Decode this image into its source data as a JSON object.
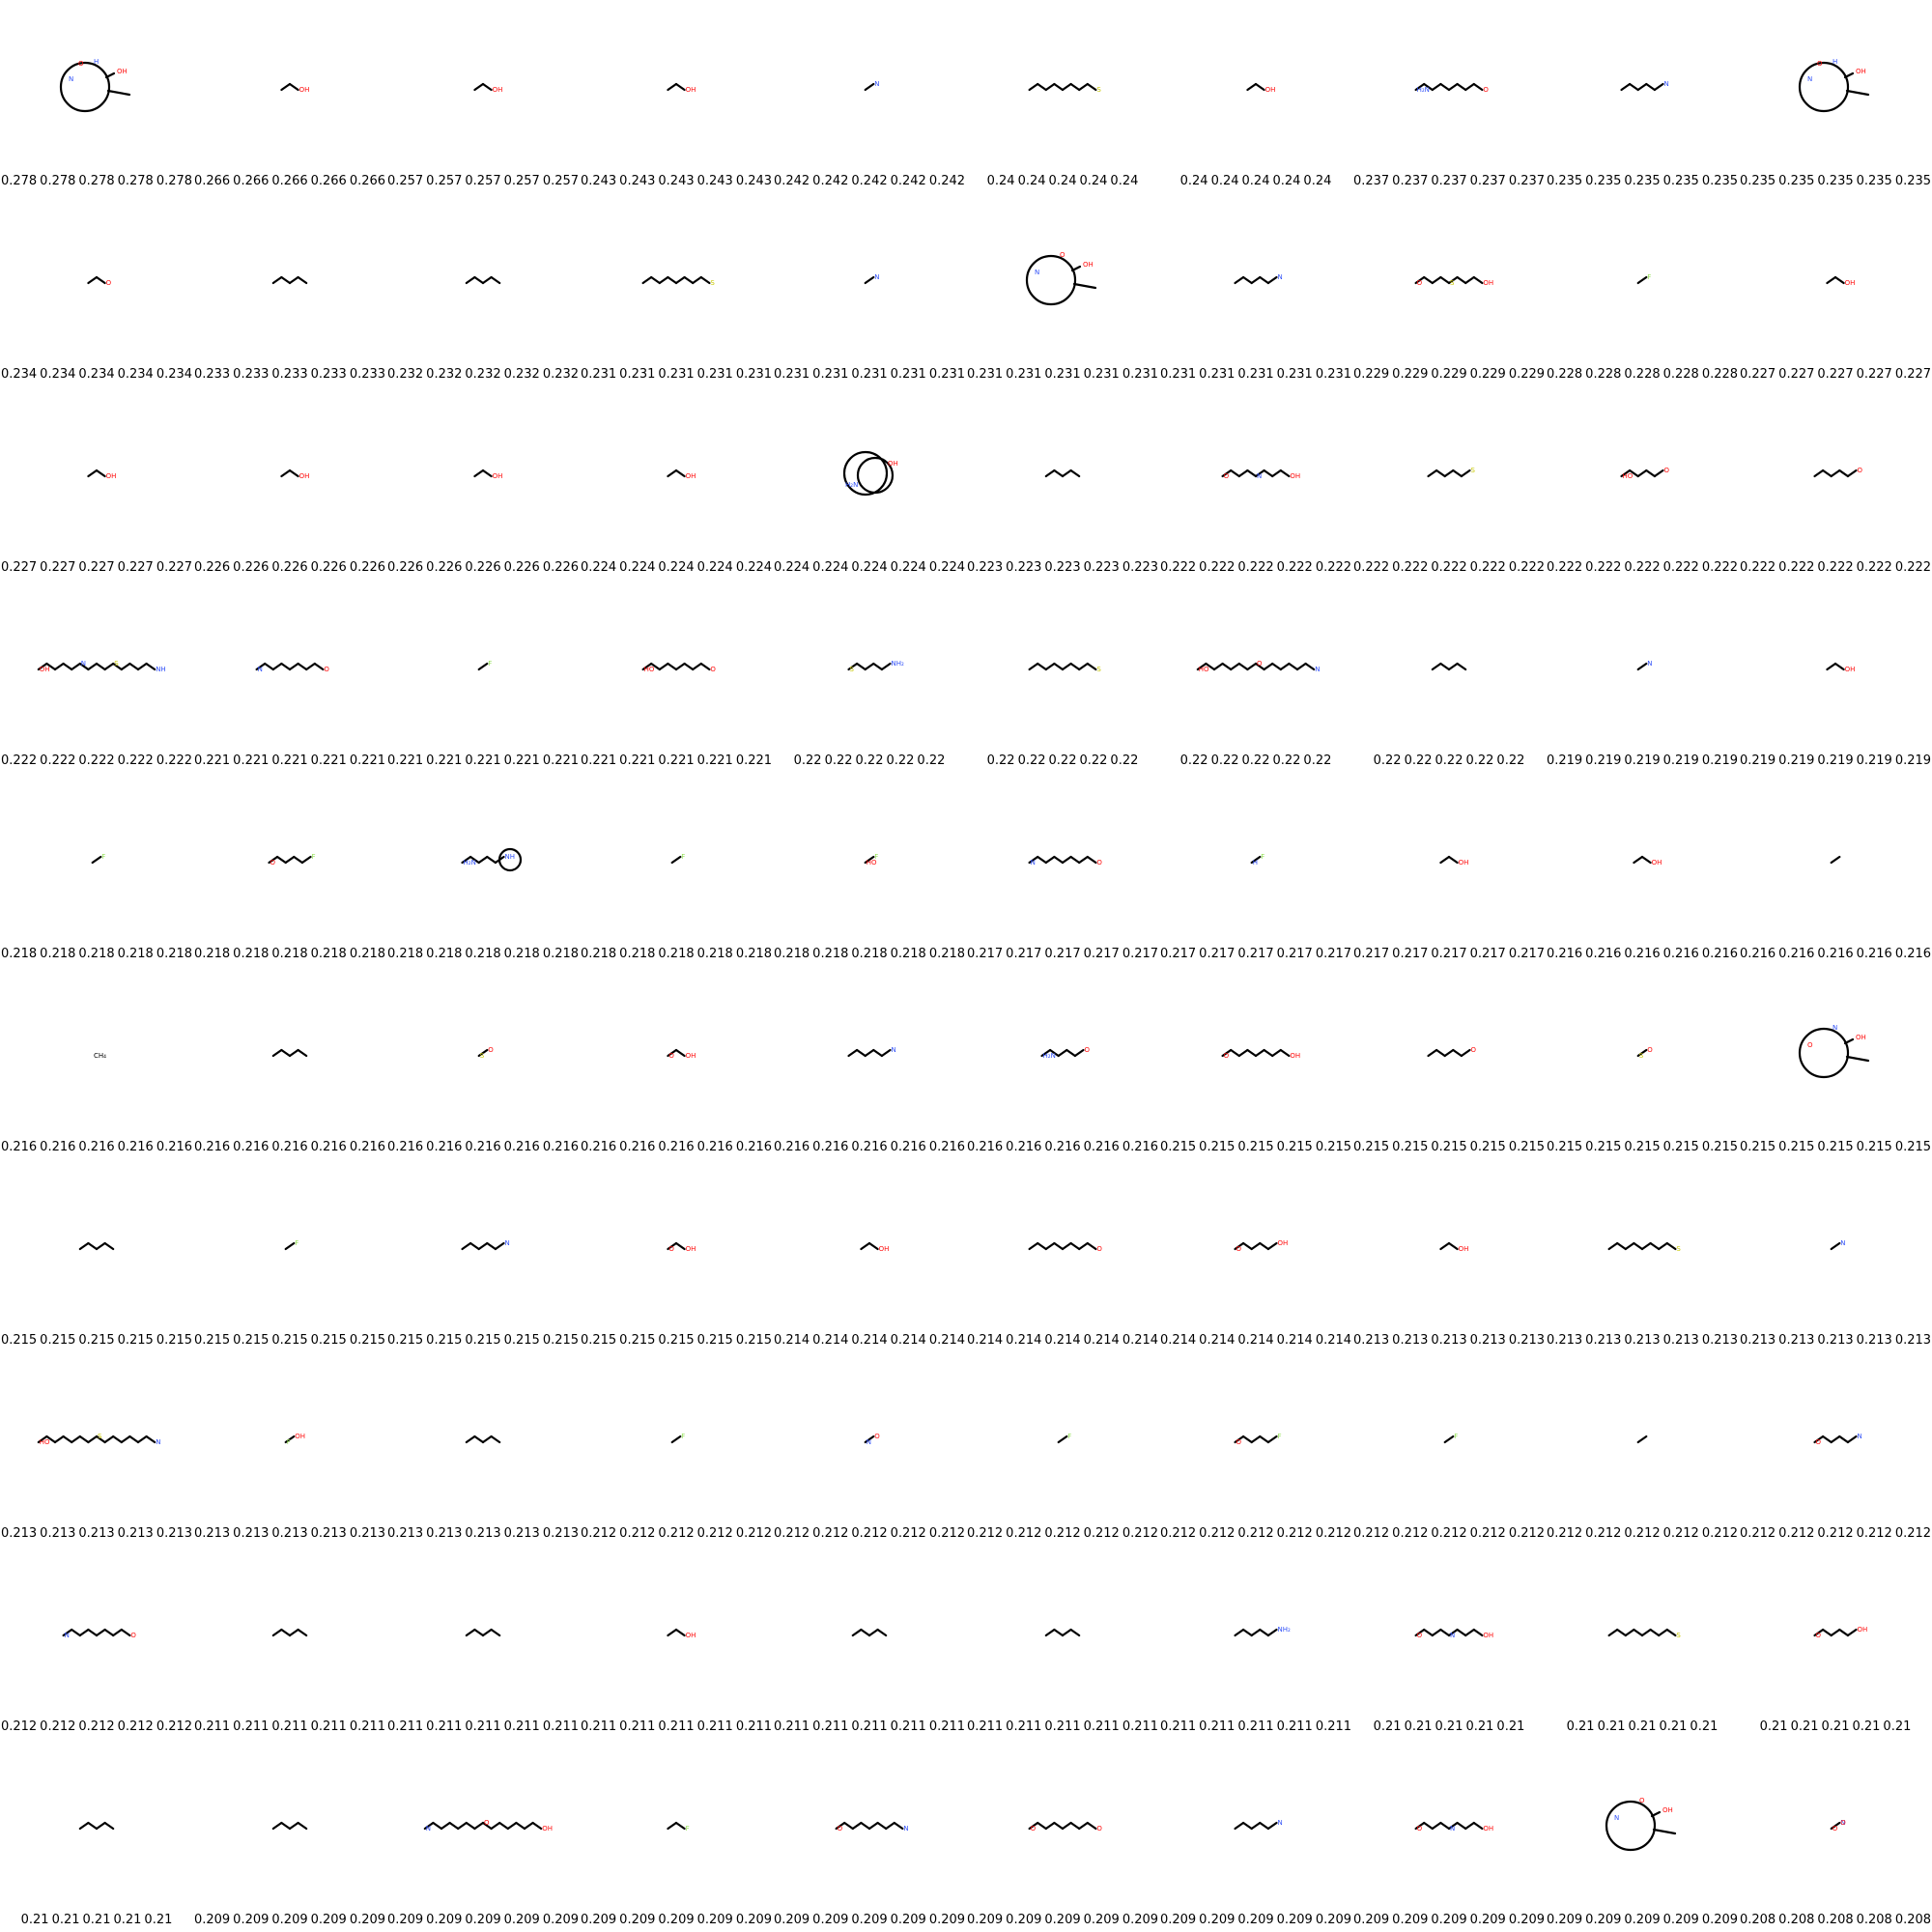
{
  "colors": {
    "bond": "#000000",
    "oxygen": "#ff0d0d",
    "nitrogen": "#3050f8",
    "sulfur": "#c8c800",
    "fluorine": "#90e050"
  },
  "cells": [
    {
      "score": "0.278",
      "shape": "macrocycle",
      "atoms": [
        {
          "t": "N",
          "c": "nitrogen"
        },
        {
          "t": "O",
          "c": "oxygen"
        },
        {
          "t": "H",
          "c": "nitrogen"
        },
        {
          "t": "OH",
          "c": "oxygen"
        }
      ]
    },
    {
      "score": "0.266",
      "shape": "short",
      "atoms": [
        {
          "t": "OH",
          "c": "oxygen"
        }
      ]
    },
    {
      "score": "0.257",
      "shape": "short",
      "atoms": [
        {
          "t": "OH",
          "c": "oxygen"
        }
      ]
    },
    {
      "score": "0.243",
      "shape": "short",
      "atoms": [
        {
          "t": "OH",
          "c": "oxygen"
        }
      ]
    },
    {
      "score": "0.242",
      "shape": "tiny",
      "atoms": [
        {
          "t": "N",
          "c": "nitrogen"
        }
      ]
    },
    {
      "score": "0.24",
      "shape": "long",
      "atoms": [
        {
          "t": "S",
          "c": "sulfur"
        }
      ]
    },
    {
      "score": "0.24",
      "shape": "short",
      "atoms": [
        {
          "t": "OH",
          "c": "oxygen"
        }
      ]
    },
    {
      "score": "0.237",
      "shape": "long",
      "atoms": [
        {
          "t": "H₂N",
          "c": "nitrogen"
        },
        {
          "t": "O",
          "c": "oxygen"
        }
      ]
    },
    {
      "score": "0.235",
      "shape": "medium",
      "atoms": [
        {
          "t": "N",
          "c": "nitrogen"
        }
      ]
    },
    {
      "score": "0.235",
      "shape": "macrocycle",
      "atoms": [
        {
          "t": "N",
          "c": "nitrogen"
        },
        {
          "t": "O",
          "c": "oxygen"
        },
        {
          "t": "H",
          "c": "nitrogen"
        },
        {
          "t": "OH",
          "c": "oxygen"
        }
      ]
    },
    {
      "score": "0.234",
      "shape": "short",
      "atoms": [
        {
          "t": "O",
          "c": "oxygen"
        }
      ]
    },
    {
      "score": "0.233",
      "shape": "zigzag",
      "atoms": []
    },
    {
      "score": "0.232",
      "shape": "zigzag",
      "atoms": []
    },
    {
      "score": "0.231",
      "shape": "long",
      "atoms": [
        {
          "t": "S",
          "c": "sulfur"
        }
      ]
    },
    {
      "score": "0.231",
      "shape": "tiny",
      "atoms": [
        {
          "t": "N",
          "c": "nitrogen"
        }
      ]
    },
    {
      "score": "0.231",
      "shape": "macrocycle",
      "atoms": [
        {
          "t": "N",
          "c": "nitrogen"
        },
        {
          "t": "O",
          "c": "oxygen"
        },
        {
          "t": "OH",
          "c": "oxygen"
        }
      ]
    },
    {
      "score": "0.231",
      "shape": "medium",
      "atoms": [
        {
          "t": "N",
          "c": "nitrogen"
        }
      ]
    },
    {
      "score": "0.229",
      "shape": "long",
      "atoms": [
        {
          "t": "O",
          "c": "oxygen"
        },
        {
          "t": "S",
          "c": "sulfur"
        },
        {
          "t": "OH",
          "c": "oxygen"
        }
      ]
    },
    {
      "score": "0.228",
      "shape": "tiny",
      "atoms": [
        {
          "t": "F",
          "c": "fluorine"
        }
      ]
    },
    {
      "score": "0.227",
      "shape": "short",
      "atoms": [
        {
          "t": "OH",
          "c": "oxygen"
        }
      ]
    },
    {
      "score": "0.227",
      "shape": "short",
      "atoms": [
        {
          "t": "OH",
          "c": "oxygen"
        }
      ]
    },
    {
      "score": "0.226",
      "shape": "short",
      "atoms": [
        {
          "t": "OH",
          "c": "oxygen"
        }
      ]
    },
    {
      "score": "0.226",
      "shape": "short",
      "atoms": [
        {
          "t": "OH",
          "c": "oxygen"
        }
      ]
    },
    {
      "score": "0.224",
      "shape": "short",
      "atoms": [
        {
          "t": "OH",
          "c": "oxygen"
        }
      ]
    },
    {
      "score": "0.224",
      "shape": "bicycle",
      "atoms": [
        {
          "t": "H₂N",
          "c": "nitrogen"
        },
        {
          "t": "OH",
          "c": "oxygen"
        }
      ]
    },
    {
      "score": "0.223",
      "shape": "zigzag",
      "atoms": []
    },
    {
      "score": "0.222",
      "shape": "long",
      "atoms": [
        {
          "t": "O",
          "c": "oxygen"
        },
        {
          "t": "N",
          "c": "nitrogen"
        },
        {
          "t": "OH",
          "c": "oxygen"
        }
      ]
    },
    {
      "score": "0.222",
      "shape": "medium",
      "atoms": [
        {
          "t": "S",
          "c": "sulfur"
        }
      ]
    },
    {
      "score": "0.222",
      "shape": "medium",
      "atoms": [
        {
          "t": "HO",
          "c": "oxygen"
        },
        {
          "t": "O",
          "c": "oxygen"
        }
      ]
    },
    {
      "score": "0.222",
      "shape": "medium",
      "atoms": [
        {
          "t": "O",
          "c": "oxygen"
        }
      ]
    },
    {
      "score": "0.222",
      "shape": "verylong",
      "atoms": [
        {
          "t": "OH",
          "c": "oxygen"
        },
        {
          "t": "N",
          "c": "nitrogen"
        },
        {
          "t": "S",
          "c": "sulfur"
        },
        {
          "t": "NH",
          "c": "nitrogen"
        }
      ]
    },
    {
      "score": "0.221",
      "shape": "long",
      "atoms": [
        {
          "t": "N",
          "c": "nitrogen"
        },
        {
          "t": "O",
          "c": "oxygen"
        }
      ]
    },
    {
      "score": "0.221",
      "shape": "tiny",
      "atoms": [
        {
          "t": "F",
          "c": "fluorine"
        }
      ]
    },
    {
      "score": "0.221",
      "shape": "long",
      "atoms": [
        {
          "t": "HO",
          "c": "oxygen"
        },
        {
          "t": "O",
          "c": "oxygen"
        }
      ]
    },
    {
      "score": "0.22",
      "shape": "medium",
      "atoms": [
        {
          "t": "S",
          "c": "sulfur"
        },
        {
          "t": "NH₂",
          "c": "nitrogen"
        }
      ]
    },
    {
      "score": "0.22",
      "shape": "long",
      "atoms": [
        {
          "t": "S",
          "c": "sulfur"
        }
      ]
    },
    {
      "score": "0.22",
      "shape": "verylong",
      "atoms": [
        {
          "t": "HO",
          "c": "oxygen"
        },
        {
          "t": "O",
          "c": "oxygen"
        },
        {
          "t": "N",
          "c": "nitrogen"
        }
      ]
    },
    {
      "score": "0.22",
      "shape": "zigzag",
      "atoms": []
    },
    {
      "score": "0.219",
      "shape": "tiny",
      "atoms": [
        {
          "t": "N",
          "c": "nitrogen"
        }
      ]
    },
    {
      "score": "0.219",
      "shape": "short",
      "atoms": [
        {
          "t": "OH",
          "c": "oxygen"
        }
      ]
    },
    {
      "score": "0.218",
      "shape": "tiny",
      "atoms": [
        {
          "t": "F",
          "c": "fluorine"
        }
      ]
    },
    {
      "score": "0.218",
      "shape": "medium",
      "atoms": [
        {
          "t": "O",
          "c": "oxygen"
        },
        {
          "t": "F",
          "c": "fluorine"
        }
      ]
    },
    {
      "score": "0.218",
      "shape": "ring",
      "atoms": [
        {
          "t": "H₂N",
          "c": "nitrogen"
        },
        {
          "t": "NH",
          "c": "nitrogen"
        }
      ]
    },
    {
      "score": "0.218",
      "shape": "tiny",
      "atoms": [
        {
          "t": "F",
          "c": "fluorine"
        }
      ]
    },
    {
      "score": "0.218",
      "shape": "tiny",
      "atoms": [
        {
          "t": "HO",
          "c": "oxygen"
        },
        {
          "t": "F",
          "c": "fluorine"
        }
      ]
    },
    {
      "score": "0.217",
      "shape": "long",
      "atoms": [
        {
          "t": "N",
          "c": "nitrogen"
        },
        {
          "t": "O",
          "c": "oxygen"
        }
      ]
    },
    {
      "score": "0.217",
      "shape": "tiny",
      "atoms": [
        {
          "t": "H",
          "c": "nitrogen"
        },
        {
          "t": "F",
          "c": "fluorine"
        }
      ]
    },
    {
      "score": "0.217",
      "shape": "short",
      "atoms": [
        {
          "t": "OH",
          "c": "oxygen"
        }
      ]
    },
    {
      "score": "0.216",
      "shape": "short",
      "atoms": [
        {
          "t": "OH",
          "c": "oxygen"
        }
      ]
    },
    {
      "score": "0.216",
      "shape": "tiny",
      "atoms": []
    },
    {
      "score": "0.216",
      "shape": "none",
      "atoms": [
        {
          "t": "CH₄",
          "c": "bond"
        }
      ]
    },
    {
      "score": "0.216",
      "shape": "zigzag",
      "atoms": []
    },
    {
      "score": "0.216",
      "shape": "tiny",
      "atoms": [
        {
          "t": "S",
          "c": "sulfur"
        },
        {
          "t": "O",
          "c": "oxygen"
        }
      ]
    },
    {
      "score": "0.216",
      "shape": "short",
      "atoms": [
        {
          "t": "O",
          "c": "oxygen"
        },
        {
          "t": "OH",
          "c": "oxygen"
        }
      ]
    },
    {
      "score": "0.216",
      "shape": "medium",
      "atoms": [
        {
          "t": "N",
          "c": "nitrogen"
        }
      ]
    },
    {
      "score": "0.216",
      "shape": "medium",
      "atoms": [
        {
          "t": "H₂N",
          "c": "nitrogen"
        },
        {
          "t": "O",
          "c": "oxygen"
        }
      ]
    },
    {
      "score": "0.215",
      "shape": "long",
      "atoms": [
        {
          "t": "O",
          "c": "oxygen"
        },
        {
          "t": "OH",
          "c": "oxygen"
        }
      ]
    },
    {
      "score": "0.215",
      "shape": "medium",
      "atoms": [
        {
          "t": "O",
          "c": "oxygen"
        }
      ]
    },
    {
      "score": "0.215",
      "shape": "tiny",
      "atoms": [
        {
          "t": "S",
          "c": "sulfur"
        },
        {
          "t": "O",
          "c": "oxygen"
        }
      ]
    },
    {
      "score": "0.215",
      "shape": "macrocycle",
      "atoms": [
        {
          "t": "O",
          "c": "oxygen"
        },
        {
          "t": "N",
          "c": "nitrogen"
        },
        {
          "t": "OH",
          "c": "oxygen"
        }
      ]
    },
    {
      "score": "0.215",
      "shape": "zigzag",
      "atoms": []
    },
    {
      "score": "0.215",
      "shape": "tiny",
      "atoms": [
        {
          "t": "F",
          "c": "fluorine"
        }
      ]
    },
    {
      "score": "0.215",
      "shape": "medium",
      "atoms": [
        {
          "t": "N",
          "c": "nitrogen"
        }
      ]
    },
    {
      "score": "0.215",
      "shape": "short",
      "atoms": [
        {
          "t": "O",
          "c": "oxygen"
        },
        {
          "t": "OH",
          "c": "oxygen"
        }
      ]
    },
    {
      "score": "0.214",
      "shape": "short",
      "atoms": [
        {
          "t": "OH",
          "c": "oxygen"
        }
      ]
    },
    {
      "score": "0.214",
      "shape": "long",
      "atoms": [
        {
          "t": "O",
          "c": "oxygen"
        }
      ]
    },
    {
      "score": "0.214",
      "shape": "medium",
      "atoms": [
        {
          "t": "O",
          "c": "oxygen"
        },
        {
          "t": "OH",
          "c": "oxygen"
        }
      ]
    },
    {
      "score": "0.213",
      "shape": "short",
      "atoms": [
        {
          "t": "OH",
          "c": "oxygen"
        }
      ]
    },
    {
      "score": "0.213",
      "shape": "long",
      "atoms": [
        {
          "t": "S",
          "c": "sulfur"
        }
      ]
    },
    {
      "score": "0.213",
      "shape": "tiny",
      "atoms": [
        {
          "t": "N",
          "c": "nitrogen"
        }
      ]
    },
    {
      "score": "0.213",
      "shape": "verylong",
      "atoms": [
        {
          "t": "HO",
          "c": "oxygen"
        },
        {
          "t": "S",
          "c": "sulfur"
        },
        {
          "t": "N",
          "c": "nitrogen"
        }
      ]
    },
    {
      "score": "0.213",
      "shape": "tiny",
      "atoms": [
        {
          "t": "F",
          "c": "fluorine"
        },
        {
          "t": "OH",
          "c": "oxygen"
        }
      ]
    },
    {
      "score": "0.213",
      "shape": "zigzag",
      "atoms": []
    },
    {
      "score": "0.212",
      "shape": "tiny",
      "atoms": [
        {
          "t": "F",
          "c": "fluorine"
        }
      ]
    },
    {
      "score": "0.212",
      "shape": "tiny",
      "atoms": [
        {
          "t": "N",
          "c": "nitrogen"
        },
        {
          "t": "O",
          "c": "oxygen"
        }
      ]
    },
    {
      "score": "0.212",
      "shape": "tiny",
      "atoms": [
        {
          "t": "F",
          "c": "fluorine"
        }
      ]
    },
    {
      "score": "0.212",
      "shape": "medium",
      "atoms": [
        {
          "t": "O",
          "c": "oxygen"
        },
        {
          "t": "F",
          "c": "fluorine"
        }
      ]
    },
    {
      "score": "0.212",
      "shape": "tiny",
      "atoms": [
        {
          "t": "F",
          "c": "fluorine"
        }
      ]
    },
    {
      "score": "0.212",
      "shape": "tiny",
      "atoms": []
    },
    {
      "score": "0.212",
      "shape": "medium",
      "atoms": [
        {
          "t": "O",
          "c": "oxygen"
        },
        {
          "t": "N",
          "c": "nitrogen"
        }
      ]
    },
    {
      "score": "0.212",
      "shape": "long",
      "atoms": [
        {
          "t": "N",
          "c": "nitrogen"
        },
        {
          "t": "O",
          "c": "oxygen"
        }
      ]
    },
    {
      "score": "0.211",
      "shape": "zigzag",
      "atoms": []
    },
    {
      "score": "0.211",
      "shape": "zigzag",
      "atoms": []
    },
    {
      "score": "0.211",
      "shape": "short",
      "atoms": [
        {
          "t": "OH",
          "c": "oxygen"
        }
      ]
    },
    {
      "score": "0.211",
      "shape": "zigzag",
      "atoms": []
    },
    {
      "score": "0.211",
      "shape": "zigzag",
      "atoms": []
    },
    {
      "score": "0.211",
      "shape": "medium",
      "atoms": [
        {
          "t": "NH₂",
          "c": "nitrogen"
        }
      ]
    },
    {
      "score": "0.21",
      "shape": "long",
      "atoms": [
        {
          "t": "O",
          "c": "oxygen"
        },
        {
          "t": "N",
          "c": "nitrogen"
        },
        {
          "t": "OH",
          "c": "oxygen"
        }
      ]
    },
    {
      "score": "0.21",
      "shape": "long",
      "atoms": [
        {
          "t": "S",
          "c": "sulfur"
        }
      ]
    },
    {
      "score": "0.21",
      "shape": "medium",
      "atoms": [
        {
          "t": "O",
          "c": "oxygen"
        },
        {
          "t": "OH",
          "c": "oxygen"
        }
      ]
    },
    {
      "score": "0.21",
      "shape": "zigzag",
      "atoms": []
    },
    {
      "score": "0.209",
      "shape": "zigzag",
      "atoms": []
    },
    {
      "score": "0.209",
      "shape": "verylong",
      "atoms": [
        {
          "t": "N",
          "c": "nitrogen"
        },
        {
          "t": "O",
          "c": "oxygen"
        },
        {
          "t": "OH",
          "c": "oxygen"
        }
      ]
    },
    {
      "score": "0.209",
      "shape": "short",
      "atoms": [
        {
          "t": "F",
          "c": "fluorine"
        }
      ]
    },
    {
      "score": "0.209",
      "shape": "long",
      "atoms": [
        {
          "t": "O",
          "c": "oxygen"
        },
        {
          "t": "N",
          "c": "nitrogen"
        }
      ]
    },
    {
      "score": "0.209",
      "shape": "long",
      "atoms": [
        {
          "t": "O",
          "c": "oxygen"
        },
        {
          "t": "O",
          "c": "oxygen"
        }
      ]
    },
    {
      "score": "0.209",
      "shape": "medium",
      "atoms": [
        {
          "t": "N",
          "c": "nitrogen"
        }
      ]
    },
    {
      "score": "0.209",
      "shape": "long",
      "atoms": [
        {
          "t": "O",
          "c": "oxygen"
        },
        {
          "t": "N",
          "c": "nitrogen"
        },
        {
          "t": "OH",
          "c": "oxygen"
        }
      ]
    },
    {
      "score": "0.209",
      "shape": "macrocycle",
      "atoms": [
        {
          "t": "N",
          "c": "nitrogen"
        },
        {
          "t": "O",
          "c": "oxygen"
        },
        {
          "t": "OH",
          "c": "oxygen"
        }
      ]
    },
    {
      "score": "0.208",
      "shape": "tiny",
      "atoms": [
        {
          "t": "O",
          "c": "oxygen"
        },
        {
          "t": "N",
          "c": "nitrogen"
        },
        {
          "t": "O",
          "c": "oxygen"
        }
      ]
    }
  ]
}
